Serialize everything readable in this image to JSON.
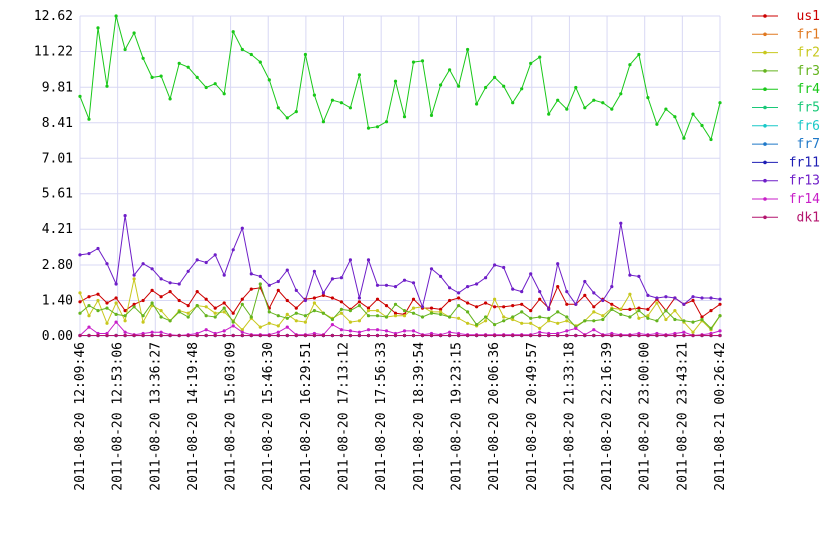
{
  "chart_data": {
    "type": "line",
    "title": "",
    "xlabel": "",
    "ylabel": "",
    "ylim": [
      0,
      12.62
    ],
    "yticks": [
      0.0,
      1.4,
      2.8,
      4.21,
      5.61,
      7.01,
      8.41,
      9.81,
      11.22,
      12.62
    ],
    "ytick_labels": [
      "0.00",
      "1.40",
      "2.80",
      "4.21",
      "5.61",
      "7.01",
      "8.41",
      "9.81",
      "11.22",
      "12.62"
    ],
    "xtick_labels": [
      "2011-08-20 12:09:46",
      "2011-08-20 12:53:06",
      "2011-08-20 13:36:27",
      "2011-08-20 14:19:48",
      "2011-08-20 15:03:09",
      "2011-08-20 15:46:30",
      "2011-08-20 16:29:51",
      "2011-08-20 17:13:12",
      "2011-08-20 17:56:33",
      "2011-08-20 18:39:54",
      "2011-08-20 19:23:15",
      "2011-08-20 20:06:36",
      "2011-08-20 20:49:57",
      "2011-08-20 21:33:18",
      "2011-08-20 22:16:39",
      "2011-08-20 23:00:00",
      "2011-08-20 23:43:21",
      "2011-08-21 00:26:42"
    ],
    "grid": true,
    "legend_position": "right",
    "series": [
      {
        "name": "us1",
        "color": "#cc0000",
        "values": [
          1.35,
          1.55,
          1.65,
          1.3,
          1.5,
          1.0,
          1.25,
          1.4,
          1.8,
          1.55,
          1.75,
          1.4,
          1.2,
          1.75,
          1.45,
          1.1,
          1.3,
          0.9,
          1.45,
          1.85,
          1.9,
          1.1,
          1.8,
          1.4,
          1.1,
          1.45,
          1.5,
          1.6,
          1.5,
          1.35,
          1.05,
          1.35,
          1.1,
          1.45,
          1.2,
          0.9,
          0.85,
          1.45,
          1.1,
          1.1,
          1.05,
          1.4,
          1.5,
          1.3,
          1.15,
          1.3,
          1.15,
          1.15,
          1.2,
          1.25,
          1.0,
          1.45,
          1.1,
          1.95,
          1.25,
          1.25,
          1.6,
          1.15,
          1.45,
          1.25,
          1.05,
          1.05,
          1.1,
          1.05,
          1.45,
          1.0,
          1.5,
          1.25,
          1.4,
          0.75,
          1.0,
          1.25
        ]
      },
      {
        "name": "fr1",
        "color": "#e07820",
        "values": [
          0.02,
          0.02,
          0.02,
          0.02,
          0.02,
          0.02,
          0.02,
          0.02,
          0.02,
          0.02,
          0.02,
          0.02,
          0.02,
          0.02,
          0.02,
          0.02,
          0.02,
          0.02,
          0.02,
          0.02,
          0.02,
          0.02,
          0.02,
          0.02,
          0.02,
          0.02,
          0.02,
          0.02,
          0.02,
          0.02,
          0.02,
          0.02,
          0.02,
          0.02,
          0.02,
          0.02,
          0.02,
          0.02,
          0.02,
          0.02,
          0.02,
          0.02,
          0.02,
          0.02,
          0.02,
          0.02,
          0.02,
          0.02,
          0.02,
          0.02,
          0.02,
          0.02,
          0.02,
          0.02,
          0.02,
          0.02,
          0.02,
          0.02,
          0.02,
          0.02,
          0.02,
          0.02,
          0.02,
          0.02,
          0.02,
          0.02,
          0.02,
          0.02,
          0.02,
          0.02,
          0.02,
          0.02
        ]
      },
      {
        "name": "fr2",
        "color": "#c8c81e",
        "values": [
          1.7,
          0.8,
          1.4,
          0.5,
          1.3,
          0.6,
          2.25,
          0.55,
          1.2,
          1.0,
          0.6,
          1.0,
          0.9,
          1.2,
          1.15,
          0.9,
          0.95,
          0.6,
          0.25,
          0.7,
          0.35,
          0.5,
          0.4,
          0.85,
          0.6,
          0.55,
          1.3,
          0.9,
          0.7,
          0.9,
          0.55,
          0.6,
          1.0,
          1.0,
          0.75,
          0.8,
          0.8,
          1.1,
          1.15,
          0.95,
          0.95,
          0.75,
          0.7,
          0.5,
          0.4,
          0.6,
          1.45,
          0.75,
          0.65,
          0.5,
          0.5,
          0.3,
          0.6,
          0.5,
          0.6,
          0.4,
          0.6,
          0.95,
          0.8,
          1.1,
          1.05,
          1.65,
          0.7,
          0.8,
          1.3,
          0.65,
          1.0,
          0.55,
          0.15,
          0.6,
          0.25,
          0.8
        ]
      },
      {
        "name": "fr3",
        "color": "#64b41e",
        "values": [
          0.9,
          1.2,
          1.0,
          1.1,
          0.85,
          0.8,
          1.15,
          0.8,
          1.3,
          0.75,
          0.6,
          0.95,
          0.75,
          1.2,
          0.8,
          0.75,
          1.1,
          0.55,
          1.25,
          0.75,
          2.05,
          0.95,
          0.8,
          0.7,
          0.9,
          0.8,
          1.0,
          0.9,
          0.65,
          1.05,
          1.0,
          1.2,
          0.8,
          0.8,
          0.75,
          1.25,
          1.0,
          0.9,
          0.75,
          0.9,
          0.85,
          0.75,
          1.2,
          0.95,
          0.45,
          0.75,
          0.45,
          0.6,
          0.75,
          0.95,
          0.7,
          0.75,
          0.7,
          0.95,
          0.75,
          0.35,
          0.6,
          0.6,
          0.65,
          1.05,
          0.85,
          0.75,
          1.0,
          0.7,
          0.6,
          1.0,
          0.65,
          0.6,
          0.55,
          0.65,
          0.3,
          0.8
        ]
      },
      {
        "name": "fr4",
        "color": "#19c819",
        "values": [
          9.45,
          8.55,
          12.15,
          9.85,
          12.62,
          11.3,
          11.95,
          10.95,
          10.2,
          10.25,
          9.35,
          10.75,
          10.6,
          10.2,
          9.8,
          9.95,
          9.55,
          12.0,
          11.3,
          11.1,
          10.8,
          10.1,
          9.0,
          8.6,
          8.85,
          11.1,
          9.5,
          8.45,
          9.3,
          9.2,
          9.0,
          10.3,
          8.2,
          8.25,
          8.45,
          10.05,
          8.65,
          10.8,
          10.85,
          8.7,
          9.9,
          10.5,
          9.85,
          11.3,
          9.15,
          9.8,
          10.2,
          9.85,
          9.2,
          9.75,
          10.75,
          11.0,
          8.75,
          9.3,
          8.95,
          9.8,
          9.0,
          9.3,
          9.2,
          8.95,
          9.55,
          10.7,
          11.1,
          9.4,
          8.35,
          8.95,
          8.65,
          7.8,
          8.75,
          8.3,
          7.75,
          9.2
        ]
      },
      {
        "name": "fr5",
        "color": "#19c878",
        "values": [
          0.02,
          0.02,
          0.02,
          0.02,
          0.02,
          0.02,
          0.02,
          0.02,
          0.02,
          0.02,
          0.02,
          0.02,
          0.02,
          0.02,
          0.02,
          0.02,
          0.02,
          0.02,
          0.02,
          0.02,
          0.02,
          0.02,
          0.02,
          0.02,
          0.02,
          0.02,
          0.02,
          0.02,
          0.02,
          0.02,
          0.02,
          0.02,
          0.02,
          0.02,
          0.02,
          0.02,
          0.02,
          0.02,
          0.02,
          0.02,
          0.02,
          0.02,
          0.02,
          0.02,
          0.02,
          0.02,
          0.02,
          0.02,
          0.02,
          0.02,
          0.02,
          0.02,
          0.02,
          0.02,
          0.02,
          0.02,
          0.02,
          0.02,
          0.02,
          0.02,
          0.02,
          0.02,
          0.02,
          0.02,
          0.02,
          0.02,
          0.02,
          0.02,
          0.02,
          0.02,
          0.02,
          0.02
        ]
      },
      {
        "name": "fr6",
        "color": "#19c8c8",
        "values": [
          0.02,
          0.02,
          0.02,
          0.02,
          0.02,
          0.02,
          0.02,
          0.02,
          0.02,
          0.02,
          0.02,
          0.02,
          0.02,
          0.02,
          0.02,
          0.02,
          0.02,
          0.02,
          0.02,
          0.02,
          0.02,
          0.02,
          0.02,
          0.02,
          0.02,
          0.02,
          0.02,
          0.02,
          0.02,
          0.02,
          0.02,
          0.02,
          0.02,
          0.02,
          0.02,
          0.02,
          0.02,
          0.02,
          0.02,
          0.02,
          0.02,
          0.02,
          0.02,
          0.02,
          0.02,
          0.02,
          0.02,
          0.02,
          0.02,
          0.02,
          0.02,
          0.02,
          0.02,
          0.02,
          0.02,
          0.02,
          0.02,
          0.02,
          0.02,
          0.02,
          0.02,
          0.02,
          0.02,
          0.02,
          0.02,
          0.02,
          0.02,
          0.02,
          0.02,
          0.02,
          0.02,
          0.02
        ]
      },
      {
        "name": "fr7",
        "color": "#1e78c8",
        "values": [
          0.02,
          0.02,
          0.02,
          0.02,
          0.02,
          0.02,
          0.02,
          0.02,
          0.02,
          0.02,
          0.02,
          0.02,
          0.02,
          0.02,
          0.02,
          0.02,
          0.02,
          0.02,
          0.02,
          0.02,
          0.02,
          0.02,
          0.02,
          0.02,
          0.02,
          0.02,
          0.02,
          0.02,
          0.02,
          0.02,
          0.02,
          0.02,
          0.02,
          0.02,
          0.02,
          0.02,
          0.02,
          0.02,
          0.02,
          0.02,
          0.02,
          0.02,
          0.02,
          0.02,
          0.02,
          0.02,
          0.02,
          0.02,
          0.02,
          0.02,
          0.02,
          0.02,
          0.02,
          0.02,
          0.02,
          0.02,
          0.02,
          0.02,
          0.02,
          0.02,
          0.02,
          0.02,
          0.02,
          0.02,
          0.02,
          0.02,
          0.02,
          0.02,
          0.02,
          0.02,
          0.02,
          0.02
        ]
      },
      {
        "name": "fr11",
        "color": "#1e1eb4",
        "values": [
          0.02,
          0.02,
          0.02,
          0.02,
          0.02,
          0.02,
          0.02,
          0.02,
          0.02,
          0.02,
          0.02,
          0.02,
          0.02,
          0.02,
          0.02,
          0.02,
          0.02,
          0.02,
          0.02,
          0.02,
          0.02,
          0.02,
          0.02,
          0.02,
          0.02,
          0.02,
          0.02,
          0.02,
          0.02,
          0.02,
          0.02,
          0.02,
          0.02,
          0.02,
          0.02,
          0.02,
          0.02,
          0.02,
          0.02,
          0.02,
          0.02,
          0.02,
          0.02,
          0.02,
          0.02,
          0.02,
          0.02,
          0.02,
          0.02,
          0.02,
          0.02,
          0.02,
          0.02,
          0.02,
          0.02,
          0.02,
          0.02,
          0.02,
          0.02,
          0.02,
          0.02,
          0.02,
          0.02,
          0.02,
          0.02,
          0.02,
          0.02,
          0.02,
          0.02,
          0.02,
          0.02,
          0.02
        ]
      },
      {
        "name": "fr13",
        "color": "#6e1ec8",
        "values": [
          3.2,
          3.25,
          3.45,
          2.85,
          2.05,
          4.75,
          2.4,
          2.85,
          2.65,
          2.25,
          2.1,
          2.05,
          2.55,
          3.0,
          2.9,
          3.2,
          2.4,
          3.4,
          4.25,
          2.45,
          2.35,
          2.0,
          2.15,
          2.6,
          1.8,
          1.4,
          2.55,
          1.7,
          2.25,
          2.3,
          3.0,
          1.5,
          3.0,
          2.0,
          2.0,
          1.95,
          2.2,
          2.1,
          1.15,
          2.65,
          2.35,
          1.9,
          1.7,
          1.95,
          2.05,
          2.3,
          2.8,
          2.7,
          1.85,
          1.75,
          2.45,
          1.75,
          1.05,
          2.85,
          1.75,
          1.25,
          2.15,
          1.7,
          1.4,
          1.95,
          4.45,
          2.4,
          2.35,
          1.6,
          1.5,
          1.55,
          1.5,
          1.25,
          1.55,
          1.5,
          1.5,
          1.45
        ]
      },
      {
        "name": "fr14",
        "color": "#c81ec8",
        "values": [
          0.02,
          0.35,
          0.1,
          0.1,
          0.55,
          0.15,
          0.05,
          0.1,
          0.15,
          0.15,
          0.05,
          0.02,
          0.05,
          0.1,
          0.25,
          0.1,
          0.2,
          0.4,
          0.15,
          0.05,
          0.05,
          0.05,
          0.15,
          0.35,
          0.05,
          0.05,
          0.1,
          0.05,
          0.45,
          0.25,
          0.2,
          0.15,
          0.25,
          0.25,
          0.2,
          0.1,
          0.2,
          0.2,
          0.05,
          0.1,
          0.05,
          0.15,
          0.1,
          0.05,
          0.05,
          0.05,
          0.05,
          0.05,
          0.05,
          0.05,
          0.05,
          0.15,
          0.1,
          0.1,
          0.2,
          0.3,
          0.05,
          0.25,
          0.05,
          0.1,
          0.05,
          0.05,
          0.1,
          0.05,
          0.1,
          0.05,
          0.1,
          0.15,
          0.02,
          0.05,
          0.1,
          0.2
        ]
      },
      {
        "name": "dk1",
        "color": "#b4146e",
        "values": [
          0.02,
          0.02,
          0.02,
          0.02,
          0.02,
          0.02,
          0.02,
          0.02,
          0.02,
          0.02,
          0.02,
          0.02,
          0.02,
          0.02,
          0.02,
          0.02,
          0.02,
          0.02,
          0.02,
          0.02,
          0.02,
          0.02,
          0.02,
          0.02,
          0.02,
          0.02,
          0.02,
          0.02,
          0.02,
          0.02,
          0.02,
          0.02,
          0.02,
          0.02,
          0.02,
          0.02,
          0.02,
          0.02,
          0.02,
          0.02,
          0.02,
          0.02,
          0.02,
          0.02,
          0.02,
          0.02,
          0.02,
          0.02,
          0.02,
          0.02,
          0.02,
          0.02,
          0.02,
          0.02,
          0.02,
          0.02,
          0.02,
          0.02,
          0.02,
          0.02,
          0.02,
          0.02,
          0.02,
          0.02,
          0.02,
          0.02,
          0.02,
          0.02,
          0.02,
          0.02,
          0.02,
          0.02
        ]
      }
    ]
  }
}
